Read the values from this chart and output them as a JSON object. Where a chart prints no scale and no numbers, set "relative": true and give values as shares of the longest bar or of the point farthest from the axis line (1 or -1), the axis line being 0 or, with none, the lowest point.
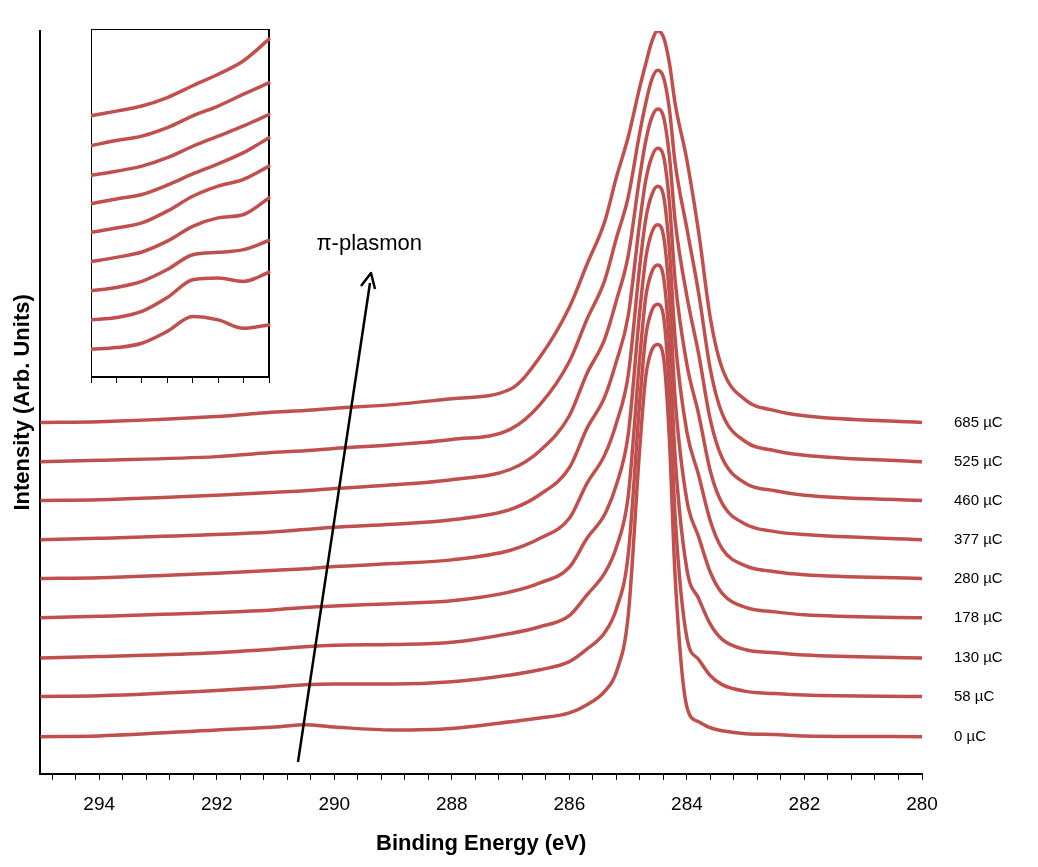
{
  "chart_data": [
    {
      "type": "line",
      "xlabel": "Binding Energy (eV)",
      "ylabel": "Intensity (Arb. Units)",
      "relative": true,
      "legend": false,
      "grid": false,
      "xlim": [
        295,
        280
      ],
      "xticks": [
        {
          "value": 294.8,
          "label": null
        },
        {
          "value": 294.4,
          "label": null
        },
        294,
        {
          "value": 293.6,
          "label": null
        },
        {
          "value": 293.2,
          "label": null
        },
        {
          "value": 292.8,
          "label": null
        },
        {
          "value": 292.4,
          "label": null
        },
        292,
        {
          "value": 291.6,
          "label": null
        },
        {
          "value": 291.2,
          "label": null
        },
        {
          "value": 290.8,
          "label": null
        },
        {
          "value": 290.4,
          "label": null
        },
        290,
        {
          "value": 289.6,
          "label": null
        },
        {
          "value": 289.2,
          "label": null
        },
        {
          "value": 288.8,
          "label": null
        },
        {
          "value": 288.4,
          "label": null
        },
        288,
        {
          "value": 287.6,
          "label": null
        },
        {
          "value": 287.2,
          "label": null
        },
        {
          "value": 286.8,
          "label": null
        },
        {
          "value": 286.4,
          "label": null
        },
        286,
        {
          "value": 285.6,
          "label": null
        },
        {
          "value": 285.2,
          "label": null
        },
        {
          "value": 284.8,
          "label": null
        },
        {
          "value": 284.4,
          "label": null
        },
        284,
        {
          "value": 283.6,
          "label": null
        },
        {
          "value": 283.2,
          "label": null
        },
        {
          "value": 282.8,
          "label": null
        },
        {
          "value": 282.4,
          "label": null
        },
        282,
        {
          "value": 281.6,
          "label": null
        },
        {
          "value": 281.2,
          "label": null
        },
        {
          "value": 280.8,
          "label": null
        },
        {
          "value": 280.4,
          "label": null
        },
        280
      ],
      "x": [
        295,
        294,
        292,
        291,
        290.5,
        290,
        289,
        288,
        287,
        286.5,
        286,
        285.7,
        285.4,
        285.2,
        285,
        284.8,
        284.7,
        284.6,
        284.5,
        284.4,
        284.3,
        284.2,
        284,
        283.8,
        283.6,
        283.4,
        283,
        282.5,
        282,
        280
      ],
      "annotations": [
        "π-plasmon"
      ],
      "series": [
        {
          "name": "0 µC",
          "color": "#c0504d",
          "values": [
            0.05,
            0.051,
            0.059,
            0.063,
            0.066,
            0.063,
            0.059,
            0.061,
            0.07,
            0.075,
            0.082,
            0.093,
            0.111,
            0.137,
            0.212,
            0.441,
            0.535,
            0.57,
            0.578,
            0.562,
            0.454,
            0.265,
            0.09,
            0.07,
            0.062,
            0.058,
            0.054,
            0.053,
            0.051,
            0.05
          ]
        },
        {
          "name": "58 µC",
          "color": "#c0504d",
          "values": [
            0.104,
            0.105,
            0.112,
            0.117,
            0.12,
            0.121,
            0.121,
            0.124,
            0.133,
            0.14,
            0.151,
            0.168,
            0.19,
            0.222,
            0.294,
            0.503,
            0.589,
            0.623,
            0.632,
            0.617,
            0.519,
            0.346,
            0.183,
            0.154,
            0.132,
            0.12,
            0.111,
            0.108,
            0.106,
            0.104
          ]
        },
        {
          "name": "130 µC",
          "color": "#c0504d",
          "values": [
            0.156,
            0.158,
            0.163,
            0.168,
            0.171,
            0.173,
            0.174,
            0.177,
            0.189,
            0.198,
            0.213,
            0.241,
            0.27,
            0.305,
            0.373,
            0.562,
            0.642,
            0.675,
            0.685,
            0.67,
            0.581,
            0.426,
            0.275,
            0.236,
            0.201,
            0.181,
            0.167,
            0.163,
            0.16,
            0.156
          ]
        },
        {
          "name": "178 µC",
          "color": "#c0504d",
          "values": [
            0.21,
            0.212,
            0.217,
            0.221,
            0.224,
            0.226,
            0.229,
            0.233,
            0.245,
            0.257,
            0.278,
            0.317,
            0.349,
            0.389,
            0.456,
            0.624,
            0.694,
            0.728,
            0.739,
            0.725,
            0.646,
            0.505,
            0.368,
            0.319,
            0.271,
            0.243,
            0.224,
            0.218,
            0.214,
            0.21
          ]
        },
        {
          "name": "280 µC",
          "color": "#c0504d",
          "values": [
            0.263,
            0.264,
            0.27,
            0.274,
            0.276,
            0.279,
            0.283,
            0.288,
            0.301,
            0.317,
            0.344,
            0.391,
            0.429,
            0.472,
            0.536,
            0.685,
            0.747,
            0.779,
            0.791,
            0.779,
            0.708,
            0.585,
            0.46,
            0.402,
            0.34,
            0.303,
            0.28,
            0.272,
            0.268,
            0.263
          ]
        },
        {
          "name": "377 µC",
          "color": "#c0504d",
          "values": [
            0.315,
            0.317,
            0.322,
            0.326,
            0.329,
            0.332,
            0.336,
            0.342,
            0.356,
            0.376,
            0.412,
            0.465,
            0.507,
            0.555,
            0.616,
            0.744,
            0.799,
            0.83,
            0.842,
            0.832,
            0.771,
            0.664,
            0.551,
            0.484,
            0.407,
            0.364,
            0.336,
            0.326,
            0.322,
            0.315
          ]
        },
        {
          "name": "460 µC",
          "color": "#c0504d",
          "values": [
            0.368,
            0.369,
            0.375,
            0.379,
            0.381,
            0.384,
            0.389,
            0.396,
            0.41,
            0.435,
            0.482,
            0.539,
            0.585,
            0.637,
            0.697,
            0.805,
            0.852,
            0.883,
            0.895,
            0.885,
            0.833,
            0.744,
            0.643,
            0.565,
            0.476,
            0.425,
            0.391,
            0.381,
            0.375,
            0.368
          ]
        },
        {
          "name": "525 µC",
          "color": "#c0504d",
          "values": [
            0.42,
            0.422,
            0.427,
            0.433,
            0.435,
            0.438,
            0.443,
            0.45,
            0.464,
            0.497,
            0.555,
            0.612,
            0.664,
            0.721,
            0.776,
            0.864,
            0.903,
            0.934,
            0.947,
            0.938,
            0.896,
            0.822,
            0.734,
            0.647,
            0.544,
            0.485,
            0.447,
            0.435,
            0.429,
            0.42
          ]
        },
        {
          "name": "685 µC",
          "color": "#c0504d",
          "values": [
            0.473,
            0.474,
            0.481,
            0.487,
            0.489,
            0.492,
            0.497,
            0.505,
            0.518,
            0.561,
            0.628,
            0.686,
            0.743,
            0.803,
            0.857,
            0.925,
            0.956,
            0.985,
            1,
            0.992,
            0.958,
            0.902,
            0.826,
            0.729,
            0.613,
            0.546,
            0.503,
            0.489,
            0.482,
            0.473
          ]
        }
      ]
    },
    {
      "type": "line",
      "relative": true,
      "legend": false,
      "grid": false,
      "tick_labels": false,
      "categories": [
        null,
        null,
        null,
        null,
        null,
        null,
        null,
        null
      ],
      "series": [
        {
          "color": "#c0504d",
          "values": [
            0.082,
            0.087,
            0.1,
            0.135,
            0.179,
            0.169,
            0.144,
            0.154
          ]
        },
        {
          "color": "#c0504d",
          "values": [
            0.169,
            0.176,
            0.194,
            0.235,
            0.288,
            0.293,
            0.283,
            0.31
          ]
        },
        {
          "color": "#c0504d",
          "values": [
            0.255,
            0.265,
            0.283,
            0.318,
            0.362,
            0.369,
            0.377,
            0.404
          ]
        },
        {
          "color": "#c0504d",
          "values": [
            0.342,
            0.354,
            0.37,
            0.402,
            0.446,
            0.471,
            0.481,
            0.53
          ]
        },
        {
          "color": "#c0504d",
          "values": [
            0.428,
            0.441,
            0.456,
            0.491,
            0.535,
            0.565,
            0.585,
            0.624
          ]
        },
        {
          "color": "#c0504d",
          "values": [
            0.513,
            0.527,
            0.54,
            0.568,
            0.601,
            0.631,
            0.664,
            0.708
          ]
        },
        {
          "color": "#c0504d",
          "values": [
            0.597,
            0.609,
            0.624,
            0.649,
            0.683,
            0.713,
            0.743,
            0.777
          ]
        },
        {
          "color": "#c0504d",
          "values": [
            0.685,
            0.7,
            0.713,
            0.738,
            0.773,
            0.802,
            0.837,
            0.871
          ]
        },
        {
          "color": "#c0504d",
          "values": [
            0.773,
            0.787,
            0.802,
            0.827,
            0.862,
            0.896,
            0.936,
            1
          ]
        }
      ]
    }
  ]
}
